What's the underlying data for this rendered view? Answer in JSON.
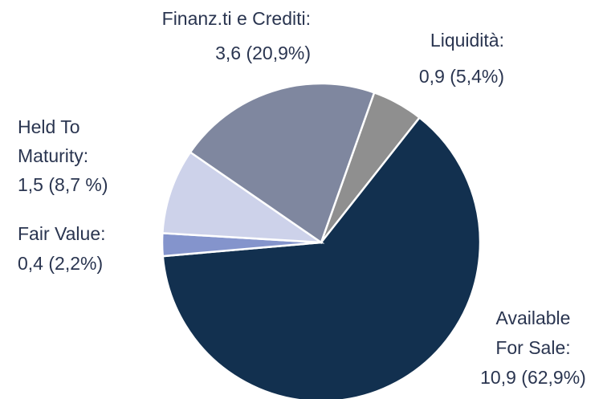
{
  "chart_data": {
    "type": "pie",
    "categories": [
      [
        "Liquidità:"
      ],
      [
        "Available",
        "For Sale:"
      ],
      [
        "Fair Value:"
      ],
      [
        "Held To",
        "Maturity:"
      ],
      [
        "Finanz.ti e Crediti:"
      ]
    ],
    "values": [
      0.9,
      10.9,
      0.4,
      1.5,
      3.6
    ],
    "value_labels": [
      "0,9 (5,4%)",
      "10,9 (62,9%)",
      "0,4 (2,2%)",
      "1,5 (8,7 %)",
      "3,6 (20,9%)"
    ],
    "colors": [
      "#8f8f8f",
      "#12304f",
      "#8494cc",
      "#cdd2ea",
      "#7f879f"
    ]
  }
}
